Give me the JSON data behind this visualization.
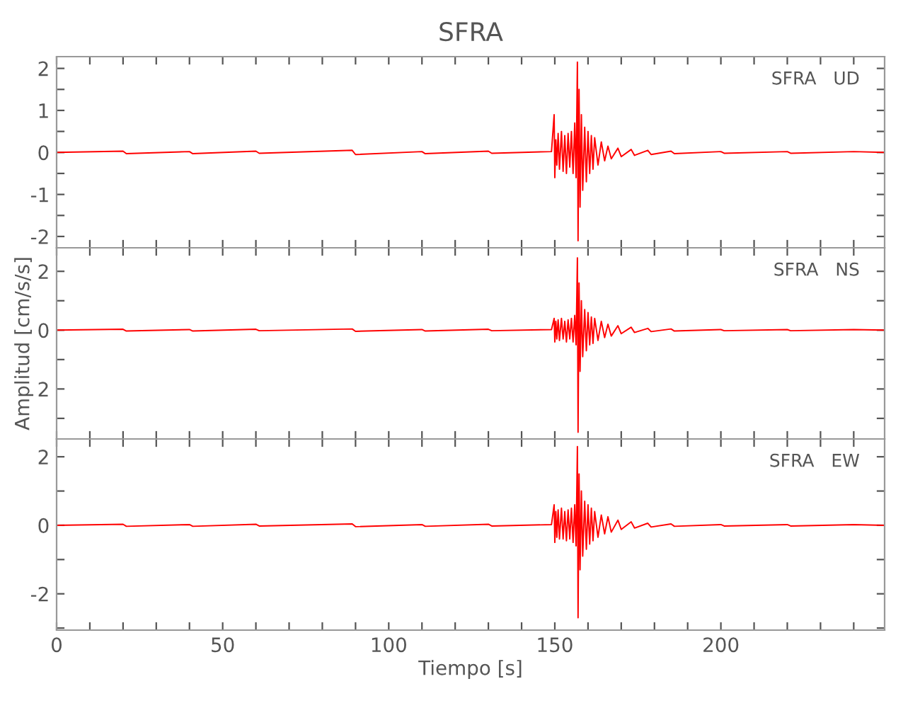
{
  "chart_data": [
    {
      "type": "line",
      "title": "SFRA",
      "annotations": [
        "SFRA   UD"
      ],
      "xlim": [
        0,
        249.3
      ],
      "ylim": [
        -2.27,
        2.28
      ],
      "tick_labels": "y",
      "xticks": [
        {
          "value": 0,
          "label": null
        },
        {
          "value": 10,
          "label": null
        },
        {
          "value": 20,
          "label": null
        },
        {
          "value": 30,
          "label": null
        },
        {
          "value": 40,
          "label": null
        },
        {
          "value": 50,
          "label": null
        },
        {
          "value": 60,
          "label": null
        },
        {
          "value": 70,
          "label": null
        },
        {
          "value": 80,
          "label": null
        },
        {
          "value": 90,
          "label": null
        },
        {
          "value": 100,
          "label": null
        },
        {
          "value": 110,
          "label": null
        },
        {
          "value": 120,
          "label": null
        },
        {
          "value": 130,
          "label": null
        },
        {
          "value": 140,
          "label": null
        },
        {
          "value": 150,
          "label": null
        },
        {
          "value": 160,
          "label": null
        },
        {
          "value": 170,
          "label": null
        },
        {
          "value": 180,
          "label": null
        },
        {
          "value": 190,
          "label": null
        },
        {
          "value": 200,
          "label": null
        },
        {
          "value": 210,
          "label": null
        },
        {
          "value": 220,
          "label": null
        },
        {
          "value": 230,
          "label": null
        },
        {
          "value": 240,
          "label": null
        }
      ],
      "yticks": [
        -2,
        {
          "value": -1.5,
          "label": null
        },
        -1,
        {
          "value": -0.5,
          "label": null
        },
        0,
        {
          "value": 0.5,
          "label": null
        },
        1,
        {
          "value": 1.5,
          "label": null
        },
        2
      ],
      "series": [
        {
          "color": "#ff0000",
          "x": [
            0,
            20,
            21,
            40,
            41,
            60,
            61,
            89,
            90,
            110,
            111,
            130,
            131,
            149,
            149.8,
            150.0,
            150.3,
            150.6,
            151,
            151.4,
            152,
            152.5,
            153,
            153.5,
            154,
            154.5,
            155,
            155.5,
            156,
            156.4,
            156.8,
            157.0,
            157.3,
            157.6,
            158,
            158.4,
            159,
            159.5,
            160,
            160.5,
            161,
            161.5,
            162,
            163,
            164,
            165,
            166,
            167,
            169,
            170,
            173,
            174,
            178,
            179,
            185,
            186,
            200,
            201,
            220,
            221,
            240,
            249
          ],
          "values": [
            0,
            0.03,
            -0.03,
            0.02,
            -0.03,
            0.03,
            -0.02,
            0.05,
            -0.05,
            0.02,
            -0.03,
            0.03,
            -0.02,
            0.02,
            0.9,
            -0.6,
            0.3,
            -0.3,
            0.45,
            -0.4,
            0.5,
            -0.45,
            0.4,
            -0.5,
            0.45,
            -0.35,
            0.5,
            -0.5,
            0.7,
            -0.6,
            2.15,
            -2.1,
            1.5,
            -1.3,
            0.9,
            -0.9,
            0.6,
            -0.7,
            0.5,
            -0.5,
            0.4,
            -0.4,
            0.35,
            -0.3,
            0.25,
            -0.2,
            0.15,
            -0.15,
            0.1,
            -0.1,
            0.07,
            -0.07,
            0.05,
            -0.05,
            0.03,
            -0.03,
            0.02,
            -0.02,
            0.02,
            -0.02,
            0.02,
            0
          ]
        }
      ]
    },
    {
      "type": "line",
      "ylabel": "Amplitud [cm/s/s]",
      "annotations": [
        "SFRA   NS"
      ],
      "xlim": [
        0,
        249.3
      ],
      "ylim": [
        -3.7,
        2.8
      ],
      "tick_labels": "y",
      "xticks": [
        {
          "value": 0,
          "label": null
        },
        {
          "value": 10,
          "label": null
        },
        {
          "value": 20,
          "label": null
        },
        {
          "value": 30,
          "label": null
        },
        {
          "value": 40,
          "label": null
        },
        {
          "value": 50,
          "label": null
        },
        {
          "value": 60,
          "label": null
        },
        {
          "value": 70,
          "label": null
        },
        {
          "value": 80,
          "label": null
        },
        {
          "value": 90,
          "label": null
        },
        {
          "value": 100,
          "label": null
        },
        {
          "value": 110,
          "label": null
        },
        {
          "value": 120,
          "label": null
        },
        {
          "value": 130,
          "label": null
        },
        {
          "value": 140,
          "label": null
        },
        {
          "value": 150,
          "label": null
        },
        {
          "value": 160,
          "label": null
        },
        {
          "value": 170,
          "label": null
        },
        {
          "value": 180,
          "label": null
        },
        {
          "value": 190,
          "label": null
        },
        {
          "value": 200,
          "label": null
        },
        {
          "value": 210,
          "label": null
        },
        {
          "value": 220,
          "label": null
        },
        {
          "value": 230,
          "label": null
        },
        {
          "value": 240,
          "label": null
        }
      ],
      "yticks": [
        {
          "value": -3,
          "label": null
        },
        {
          "value": -2,
          "label": "2"
        },
        {
          "value": -1,
          "label": null
        },
        0,
        {
          "value": 1,
          "label": null
        },
        2
      ],
      "series": [
        {
          "color": "#ff0000",
          "x": [
            0,
            20,
            21,
            40,
            41,
            60,
            61,
            89,
            90,
            110,
            111,
            130,
            131,
            149,
            149.8,
            150.0,
            150.3,
            150.6,
            151,
            151.4,
            152,
            152.5,
            153,
            153.5,
            154,
            154.5,
            155,
            155.5,
            156,
            156.4,
            156.8,
            157.0,
            157.3,
            157.6,
            158,
            158.4,
            159,
            159.5,
            160,
            160.5,
            161,
            161.5,
            162,
            163,
            164,
            165,
            166,
            167,
            169,
            170,
            173,
            174,
            178,
            179,
            185,
            186,
            200,
            201,
            220,
            221,
            240,
            249
          ],
          "values": [
            0,
            0.03,
            -0.03,
            0.02,
            -0.03,
            0.03,
            -0.02,
            0.04,
            -0.04,
            0.02,
            -0.03,
            0.03,
            -0.02,
            0.02,
            0.4,
            -0.4,
            0.3,
            -0.3,
            0.35,
            -0.35,
            0.4,
            -0.3,
            0.3,
            -0.4,
            0.35,
            -0.3,
            0.4,
            -0.4,
            0.5,
            -0.5,
            2.46,
            -3.47,
            1.6,
            -1.4,
            1.0,
            -0.9,
            0.7,
            -0.7,
            0.6,
            -0.5,
            0.45,
            -0.45,
            0.4,
            -0.35,
            0.3,
            -0.25,
            0.2,
            -0.2,
            0.15,
            -0.12,
            0.1,
            -0.08,
            0.06,
            -0.05,
            0.04,
            -0.03,
            0.02,
            -0.02,
            0.02,
            -0.02,
            0.02,
            0
          ]
        }
      ]
    },
    {
      "type": "line",
      "xlabel": "Tiempo [s]",
      "annotations": [
        "SFRA   EW"
      ],
      "xlim": [
        0,
        249.3
      ],
      "ylim": [
        -3.06,
        2.52
      ],
      "xticks": [
        0,
        {
          "value": 10,
          "label": null
        },
        {
          "value": 20,
          "label": null
        },
        {
          "value": 30,
          "label": null
        },
        {
          "value": 40,
          "label": null
        },
        50,
        {
          "value": 60,
          "label": null
        },
        {
          "value": 70,
          "label": null
        },
        {
          "value": 80,
          "label": null
        },
        {
          "value": 90,
          "label": null
        },
        100,
        {
          "value": 110,
          "label": null
        },
        {
          "value": 120,
          "label": null
        },
        {
          "value": 130,
          "label": null
        },
        {
          "value": 140,
          "label": null
        },
        150,
        {
          "value": 160,
          "label": null
        },
        {
          "value": 170,
          "label": null
        },
        {
          "value": 180,
          "label": null
        },
        {
          "value": 190,
          "label": null
        },
        200,
        {
          "value": 210,
          "label": null
        },
        {
          "value": 220,
          "label": null
        },
        {
          "value": 230,
          "label": null
        },
        {
          "value": 240,
          "label": null
        }
      ],
      "yticks": [
        {
          "value": -3,
          "label": null
        },
        -2,
        {
          "value": -1,
          "label": null
        },
        0,
        {
          "value": 1,
          "label": null
        },
        2
      ],
      "series": [
        {
          "color": "#ff0000",
          "x": [
            0,
            20,
            21,
            40,
            41,
            60,
            61,
            89,
            90,
            110,
            111,
            130,
            131,
            149,
            149.8,
            150.0,
            150.3,
            150.6,
            151,
            151.4,
            152,
            152.5,
            153,
            153.5,
            154,
            154.5,
            155,
            155.5,
            156,
            156.4,
            156.8,
            157.0,
            157.3,
            157.6,
            158,
            158.4,
            159,
            159.5,
            160,
            160.5,
            161,
            161.5,
            162,
            163,
            164,
            165,
            166,
            167,
            169,
            170,
            173,
            174,
            178,
            179,
            185,
            186,
            200,
            201,
            220,
            221,
            240,
            249
          ],
          "values": [
            0,
            0.03,
            -0.03,
            0.02,
            -0.03,
            0.03,
            -0.02,
            0.04,
            -0.04,
            0.02,
            -0.03,
            0.03,
            -0.02,
            0.02,
            0.6,
            -0.5,
            0.4,
            -0.35,
            0.45,
            -0.4,
            0.5,
            -0.4,
            0.4,
            -0.45,
            0.45,
            -0.4,
            0.5,
            -0.5,
            0.6,
            -0.6,
            2.3,
            -2.7,
            1.5,
            -1.3,
            1.0,
            -0.9,
            0.7,
            -0.7,
            0.6,
            -0.55,
            0.5,
            -0.45,
            0.4,
            -0.35,
            0.3,
            -0.25,
            0.25,
            -0.2,
            0.15,
            -0.12,
            0.1,
            -0.08,
            0.06,
            -0.05,
            0.04,
            -0.03,
            0.02,
            -0.02,
            0.02,
            -0.02,
            0.02,
            0
          ]
        }
      ]
    }
  ]
}
